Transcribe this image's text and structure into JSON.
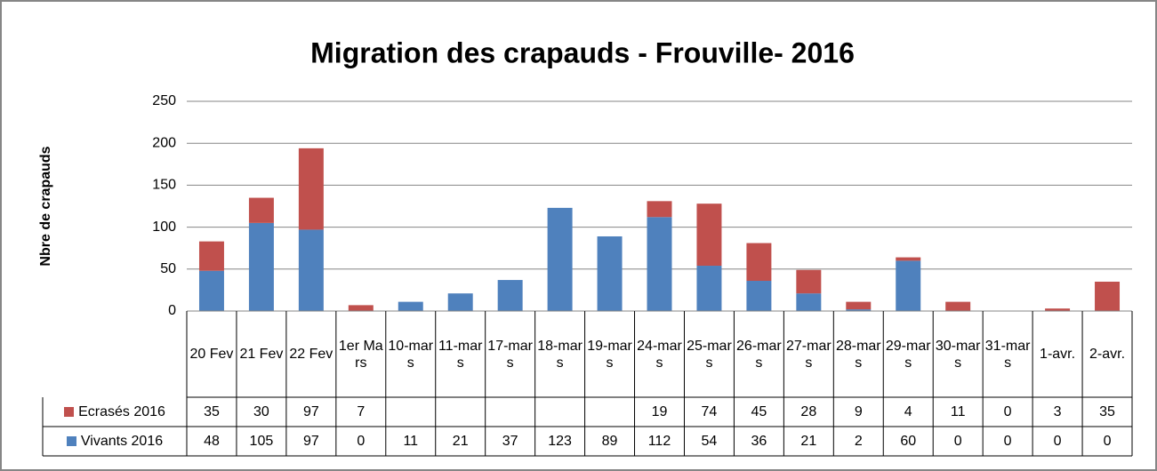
{
  "chart_data": {
    "type": "bar",
    "stacked": true,
    "title": "Migration des crapauds - Frouville- 2016",
    "y_label": "Nbre de crapauds",
    "categories": [
      "20 Fev",
      "21 Fev",
      "22 Fev",
      "1er Mars",
      "10-mars",
      "11-mars",
      "17-mars",
      "18-mars",
      "19-mars",
      "24-mars",
      "25-mars",
      "26-mars",
      "27-mars",
      "28-mars",
      "29-mars",
      "30-mars",
      "31-mars",
      "1-avr.",
      "2-avr."
    ],
    "series": [
      {
        "name": "Ecrasés 2016",
        "color": "#c0504d",
        "values": [
          35,
          30,
          97,
          7,
          null,
          null,
          null,
          null,
          null,
          19,
          74,
          45,
          28,
          9,
          4,
          11,
          0,
          3,
          35
        ]
      },
      {
        "name": "Vivants 2016",
        "color": "#4f81bd",
        "values": [
          48,
          105,
          97,
          0,
          11,
          21,
          37,
          123,
          89,
          112,
          54,
          36,
          21,
          2,
          60,
          0,
          0,
          0,
          0
        ]
      }
    ],
    "ylim": [
      0,
      250
    ],
    "yticks": [
      0,
      50,
      100,
      150,
      200,
      250
    ],
    "grid": true,
    "legend": "data-table"
  }
}
